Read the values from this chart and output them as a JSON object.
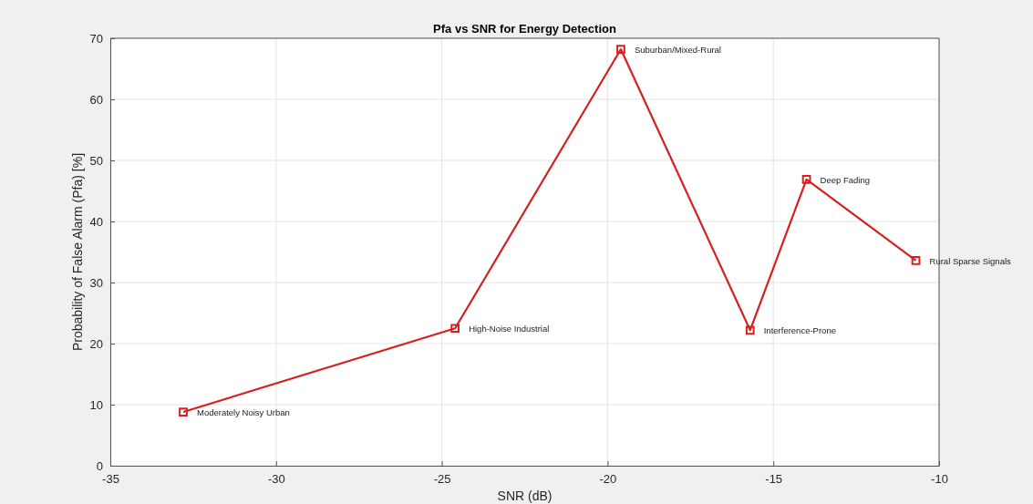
{
  "chart_data": {
    "type": "line",
    "title": "Pfa vs SNR for Energy Detection",
    "xlabel": "SNR (dB)",
    "ylabel": "Probability of False Alarm (Pfa) [%]",
    "x": [
      -32.8,
      -24.6,
      -19.6,
      -15.7,
      -14.0,
      -10.7
    ],
    "series": [
      {
        "color": "#d62020",
        "values": [
          8.8,
          22.5,
          68.2,
          22.2,
          46.9,
          33.6
        ]
      }
    ],
    "xlim": [
      -35,
      -10
    ],
    "xticks": [
      -35,
      -30,
      -25,
      -20,
      -15,
      -10
    ],
    "ylim": [
      0,
      70
    ],
    "yticks": [
      0,
      10,
      20,
      30,
      40,
      50,
      60,
      70
    ],
    "grid": true,
    "marker": "square",
    "line_style": "solid",
    "annotations": [
      {
        "text": "Moderately Noisy Urban",
        "x": -32.8,
        "y": 8.8
      },
      {
        "text": "High-Noise Industrial",
        "x": -24.6,
        "y": 22.5
      },
      {
        "text": "Suburban/Mixed-Rural",
        "x": -19.6,
        "y": 68.2
      },
      {
        "text": "Interference-Prone",
        "x": -15.7,
        "y": 22.2
      },
      {
        "text": "Deep Fading",
        "x": -14.0,
        "y": 46.9
      },
      {
        "text": "Rural Sparse Signals",
        "x": -10.7,
        "y": 33.6
      }
    ]
  }
}
